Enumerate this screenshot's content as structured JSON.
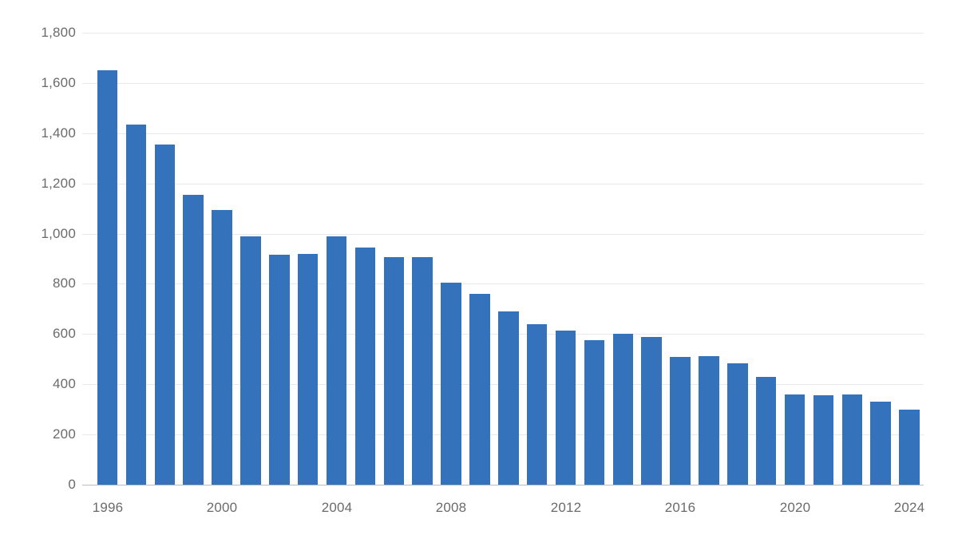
{
  "chart_data": {
    "type": "bar",
    "title": "",
    "xlabel": "",
    "ylabel": "",
    "categories": [
      1996,
      1997,
      1998,
      1999,
      2000,
      2001,
      2002,
      2003,
      2004,
      2005,
      2006,
      2007,
      2008,
      2009,
      2010,
      2011,
      2012,
      2013,
      2014,
      2015,
      2016,
      2017,
      2018,
      2019,
      2020,
      2021,
      2022,
      2023,
      2024
    ],
    "values": [
      1650,
      1435,
      1355,
      1155,
      1095,
      990,
      915,
      920,
      990,
      945,
      905,
      905,
      805,
      760,
      690,
      640,
      615,
      575,
      600,
      590,
      510,
      512,
      482,
      428,
      360,
      355,
      358,
      332,
      300
    ],
    "ylim": [
      0,
      1800
    ],
    "y_ticks": [
      0,
      200,
      400,
      600,
      800,
      1000,
      1200,
      1400,
      1600,
      1800
    ],
    "y_tick_labels": [
      "0",
      "200",
      "400",
      "600",
      "800",
      "1,000",
      "1,200",
      "1,400",
      "1,600",
      "1,800"
    ],
    "x_tick_years": [
      1996,
      2000,
      2004,
      2008,
      2012,
      2016,
      2020,
      2024
    ],
    "x_tick_labels": [
      "1996",
      "2000",
      "2004",
      "2008",
      "2012",
      "2016",
      "2020",
      "2024"
    ],
    "grid": true,
    "legend_position": "none",
    "colors": {
      "bar": "#3572bc",
      "gridline": "#e9e9e9",
      "baseline": "#b9bdc2",
      "label": "#6b6b6b",
      "background": "#ffffff"
    }
  }
}
